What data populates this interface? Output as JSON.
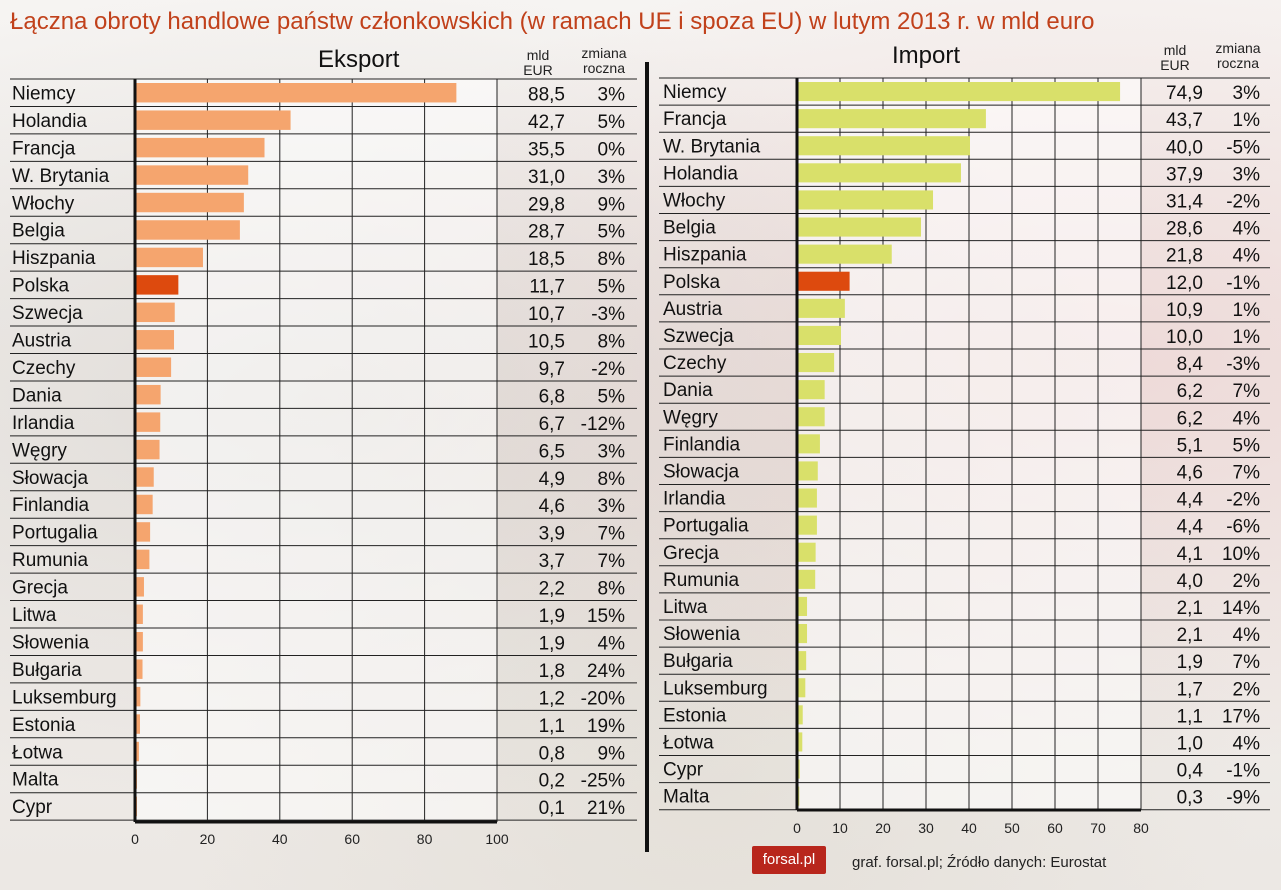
{
  "title": "Łączna obroty handlowe państw członkowskich (w ramach UE i spoza EU) w lutym 2013 r. w mld euro",
  "headers": {
    "value_line1": "mld",
    "value_line2": "EUR",
    "change_line1": "zmiana",
    "change_line2": "roczna"
  },
  "source": "graf. forsal.pl; Źródło danych: Eurostat",
  "logo_text": "forsal.pl",
  "colors": {
    "export_bar": "#f5a56e",
    "import_bar": "#d9e06a",
    "highlight_bar": "#dd4a0e",
    "title": "#c1411b"
  },
  "chart_data": [
    {
      "type": "bar",
      "orientation": "horizontal",
      "title": "Eksport",
      "xlim": [
        0,
        100
      ],
      "xticks": [
        0,
        20,
        40,
        60,
        80,
        100
      ],
      "highlight": "Polska",
      "categories": [
        "Niemcy",
        "Holandia",
        "Francja",
        "W. Brytania",
        "Włochy",
        "Belgia",
        "Hiszpania",
        "Polska",
        "Szwecja",
        "Austria",
        "Czechy",
        "Dania",
        "Irlandia",
        "Węgry",
        "Słowacja",
        "Finlandia",
        "Portugalia",
        "Rumunia",
        "Grecja",
        "Litwa",
        "Słowenia",
        "Bułgaria",
        "Luksemburg",
        "Estonia",
        "Łotwa",
        "Malta",
        "Cypr"
      ],
      "values": [
        88.5,
        42.7,
        35.5,
        31.0,
        29.8,
        28.7,
        18.5,
        11.7,
        10.7,
        10.5,
        9.7,
        6.8,
        6.7,
        6.5,
        4.9,
        4.6,
        3.9,
        3.7,
        2.2,
        1.9,
        1.9,
        1.8,
        1.2,
        1.1,
        0.8,
        0.2,
        0.1
      ],
      "value_labels": [
        "88,5",
        "42,7",
        "35,5",
        "31,0",
        "29,8",
        "28,7",
        "18,5",
        "11,7",
        "10,7",
        "10,5",
        "9,7",
        "6,8",
        "6,7",
        "6,5",
        "4,9",
        "4,6",
        "3,9",
        "3,7",
        "2,2",
        "1,9",
        "1,9",
        "1,8",
        "1,2",
        "1,1",
        "0,8",
        "0,2",
        "0,1"
      ],
      "changes": [
        "3%",
        "5%",
        "0%",
        "3%",
        "9%",
        "5%",
        "8%",
        "5%",
        "-3%",
        "8%",
        "-2%",
        "5%",
        "-12%",
        "3%",
        "8%",
        "3%",
        "7%",
        "7%",
        "8%",
        "15%",
        "4%",
        "24%",
        "-20%",
        "19%",
        "9%",
        "-25%",
        "21%"
      ]
    },
    {
      "type": "bar",
      "orientation": "horizontal",
      "title": "Import",
      "xlim": [
        0,
        80
      ],
      "xticks": [
        0,
        10,
        20,
        30,
        40,
        50,
        60,
        70,
        80
      ],
      "highlight": "Polska",
      "categories": [
        "Niemcy",
        "Francja",
        "W. Brytania",
        "Holandia",
        "Włochy",
        "Belgia",
        "Hiszpania",
        "Polska",
        "Austria",
        "Szwecja",
        "Czechy",
        "Dania",
        "Węgry",
        "Finlandia",
        "Słowacja",
        "Irlandia",
        "Portugalia",
        "Grecja",
        "Rumunia",
        "Litwa",
        "Słowenia",
        "Bułgaria",
        "Luksemburg",
        "Estonia",
        "Łotwa",
        "Cypr",
        "Malta"
      ],
      "values": [
        74.9,
        43.7,
        40.0,
        37.9,
        31.4,
        28.6,
        21.8,
        12.0,
        10.9,
        10.0,
        8.4,
        6.2,
        6.2,
        5.1,
        4.6,
        4.4,
        4.4,
        4.1,
        4.0,
        2.1,
        2.1,
        1.9,
        1.7,
        1.1,
        1.0,
        0.4,
        0.3
      ],
      "value_labels": [
        "74,9",
        "43,7",
        "40,0",
        "37,9",
        "31,4",
        "28,6",
        "21,8",
        "12,0",
        "10,9",
        "10,0",
        "8,4",
        "6,2",
        "6,2",
        "5,1",
        "4,6",
        "4,4",
        "4,4",
        "4,1",
        "4,0",
        "2,1",
        "2,1",
        "1,9",
        "1,7",
        "1,1",
        "1,0",
        "0,4",
        "0,3"
      ],
      "changes": [
        "3%",
        "1%",
        "-5%",
        "3%",
        "-2%",
        "4%",
        "4%",
        "-1%",
        "1%",
        "1%",
        "-3%",
        "7%",
        "4%",
        "5%",
        "7%",
        "-2%",
        "-6%",
        "10%",
        "2%",
        "14%",
        "4%",
        "7%",
        "2%",
        "17%",
        "4%",
        "-1%",
        "-9%"
      ]
    }
  ]
}
